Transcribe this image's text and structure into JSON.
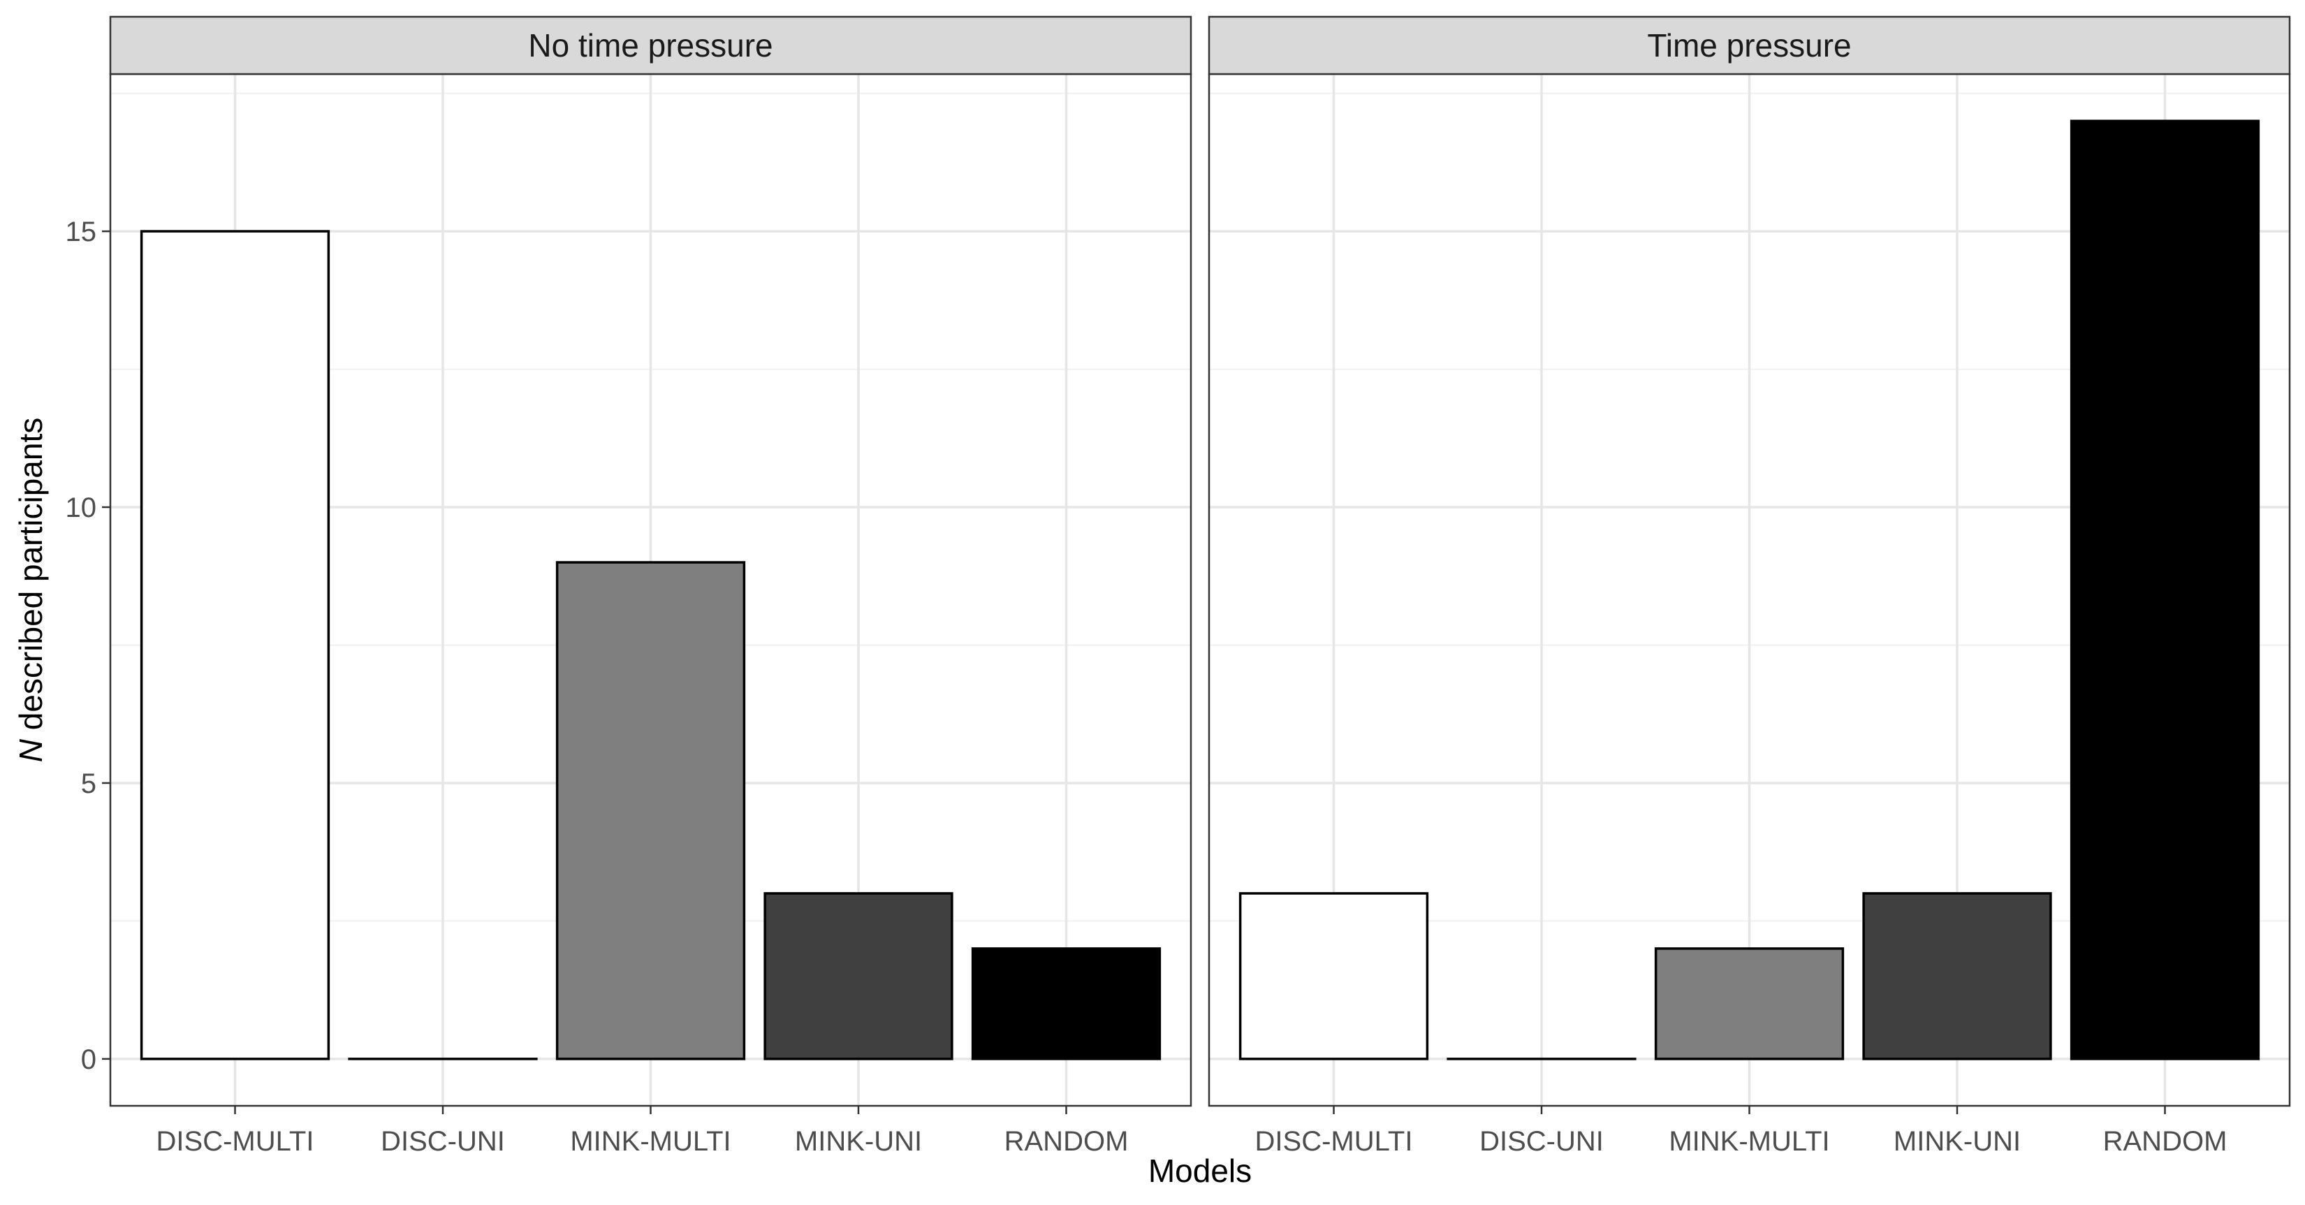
{
  "chart_data": {
    "type": "bar",
    "xlabel": "Models",
    "ylabel_italic": "N",
    "ylabel_rest": " described participants",
    "ylim": [
      -0.85,
      17.85
    ],
    "yticks": [
      "0",
      "5",
      "10",
      "15"
    ],
    "categories": [
      "DISC-MULTI",
      "DISC-UNI",
      "MINK-MULTI",
      "MINK-UNI",
      "RANDOM"
    ],
    "category_colors": [
      "#ffffff",
      "#ffffff",
      "#7f7f7f",
      "#404040",
      "#000000"
    ],
    "bar_outline_color": "#000000",
    "strip_background": "#d9d9d9",
    "grid": true,
    "panels": [
      {
        "title": "No time pressure",
        "values": [
          15,
          0,
          9,
          3,
          2
        ]
      },
      {
        "title": "Time pressure",
        "values": [
          3,
          0,
          2,
          3,
          17
        ]
      }
    ]
  }
}
